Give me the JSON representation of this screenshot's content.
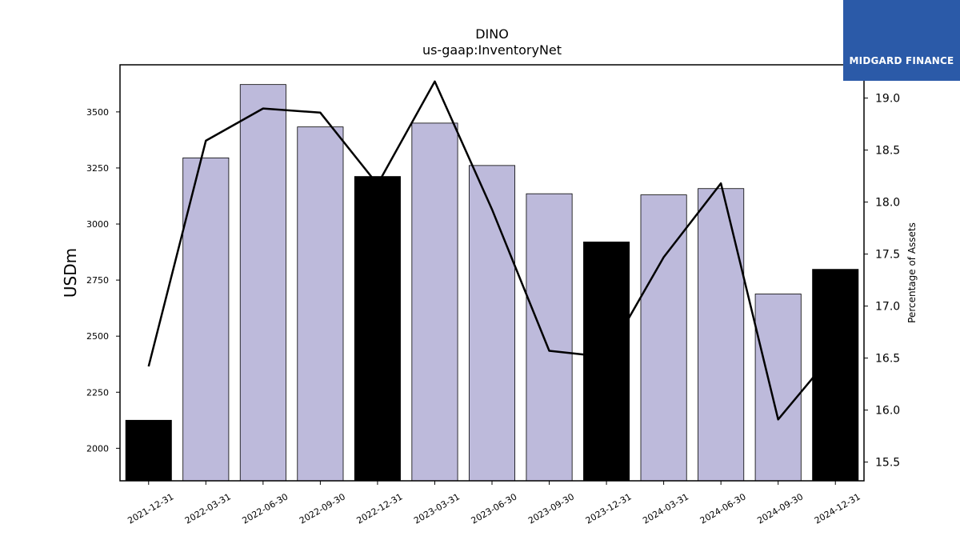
{
  "chart_data": {
    "type": "bar",
    "title": "DINO",
    "subtitle": "us-gaap:InventoryNet",
    "ylabel": "USDm",
    "y2label": "Percentage of Assets",
    "categories": [
      "2021-12-31",
      "2022-03-31",
      "2022-06-30",
      "2022-09-30",
      "2022-12-31",
      "2023-03-31",
      "2023-06-30",
      "2023-09-30",
      "2023-12-31",
      "2024-03-31",
      "2024-06-30",
      "2024-09-30",
      "2024-12-31"
    ],
    "series": [
      {
        "type": "bar",
        "values": [
          2125,
          3295,
          3622,
          3433,
          3212,
          3450,
          3261,
          3135,
          2920,
          3130,
          3158,
          2688,
          2798
        ],
        "colors": [
          "#000000",
          "#bdbadb",
          "#bdbadb",
          "#bdbadb",
          "#000000",
          "#bdbadb",
          "#bdbadb",
          "#bdbadb",
          "#000000",
          "#bdbadb",
          "#bdbadb",
          "#bdbadb",
          "#000000"
        ]
      },
      {
        "type": "line",
        "axis": "right",
        "color": "#000000",
        "values": [
          16.42,
          18.59,
          18.9,
          18.86,
          18.17,
          19.16,
          17.93,
          16.57,
          16.51,
          17.47,
          18.18,
          15.91,
          16.57
        ]
      }
    ],
    "ylim": [
      1855,
      3710
    ],
    "y2lim": [
      15.32,
      19.32
    ],
    "yticks": [
      2000,
      2250,
      2500,
      2750,
      3000,
      3250,
      3500
    ],
    "y2ticks": [
      15.5,
      16.0,
      16.5,
      17.0,
      17.5,
      18.0,
      18.5,
      19.0
    ],
    "grid": false
  },
  "logo": {
    "text": "MIDGARD FINANCE",
    "color": "#2b5aa8"
  }
}
